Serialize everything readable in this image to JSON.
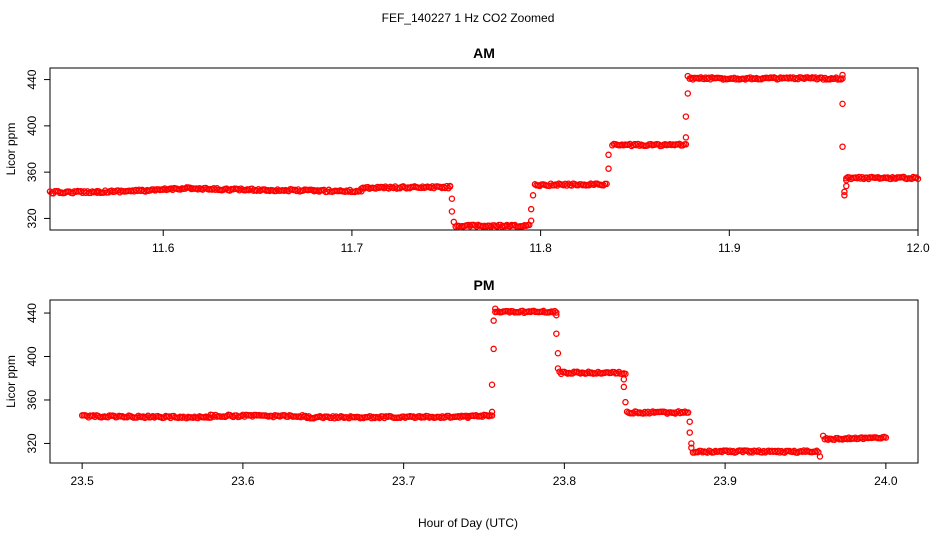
{
  "figure": {
    "title": "FEF_140227  1 Hz CO2 Zoomed",
    "xlabel": "Hour of Day (UTC)"
  },
  "colors": {
    "points": "#ff0000",
    "axes": "#000000",
    "background": "#ffffff"
  },
  "chart_data": [
    {
      "type": "scatter",
      "title": "AM",
      "ylabel": "Licor ppm",
      "xlim": [
        11.54,
        12.0
      ],
      "ylim": [
        310,
        450
      ],
      "xticks": [
        "11.6",
        "11.7",
        "11.8",
        "11.9",
        "12.0"
      ],
      "yticks": [
        "320",
        "360",
        "400",
        "440"
      ],
      "grid": false,
      "segments": [
        {
          "x": [
            11.54,
            11.565
          ],
          "y": [
            342.5,
            343
          ]
        },
        {
          "x": [
            11.565,
            11.6
          ],
          "y": [
            343,
            344.5
          ]
        },
        {
          "x": [
            11.6,
            11.615
          ],
          "y": [
            345,
            346.5
          ]
        },
        {
          "x": [
            11.615,
            11.68
          ],
          "y": [
            345.5,
            344
          ]
        },
        {
          "x": [
            11.68,
            11.705
          ],
          "y": [
            344,
            343.5
          ]
        },
        {
          "x": [
            11.705,
            11.752
          ],
          "y": [
            346.5,
            347
          ]
        },
        {
          "x": [
            11.755,
            11.794
          ],
          "y": [
            313.5,
            313.5
          ]
        },
        {
          "x": [
            11.797,
            11.835
          ],
          "y": [
            349,
            349.5
          ]
        },
        {
          "x": [
            11.838,
            11.877
          ],
          "y": [
            383.5,
            383.5
          ]
        },
        {
          "x": [
            11.879,
            11.96
          ],
          "y": [
            441,
            441
          ]
        },
        {
          "x": [
            11.962,
            12.0
          ],
          "y": [
            355,
            355
          ]
        }
      ],
      "transition_points": [
        {
          "x": 11.752,
          "y": 348
        },
        {
          "x": 11.753,
          "y": 337
        },
        {
          "x": 11.753,
          "y": 326
        },
        {
          "x": 11.754,
          "y": 317
        },
        {
          "x": 11.795,
          "y": 318
        },
        {
          "x": 11.795,
          "y": 328
        },
        {
          "x": 11.796,
          "y": 340
        },
        {
          "x": 11.836,
          "y": 363
        },
        {
          "x": 11.836,
          "y": 375
        },
        {
          "x": 11.877,
          "y": 390
        },
        {
          "x": 11.877,
          "y": 408
        },
        {
          "x": 11.878,
          "y": 428
        },
        {
          "x": 11.878,
          "y": 443
        },
        {
          "x": 11.96,
          "y": 444
        },
        {
          "x": 11.96,
          "y": 419
        },
        {
          "x": 11.96,
          "y": 382
        },
        {
          "x": 11.961,
          "y": 340
        },
        {
          "x": 11.961,
          "y": 343
        },
        {
          "x": 11.962,
          "y": 348
        },
        {
          "x": 11.962,
          "y": 353
        }
      ]
    },
    {
      "type": "scatter",
      "title": "PM",
      "ylabel": "Licor ppm",
      "xlim": [
        23.48,
        24.02
      ],
      "ylim": [
        302,
        452
      ],
      "xticks": [
        "23.5",
        "23.6",
        "23.7",
        "23.8",
        "23.9",
        "24.0"
      ],
      "yticks": [
        "320",
        "360",
        "400",
        "440"
      ],
      "grid": false,
      "segments": [
        {
          "x": [
            23.5,
            23.58
          ],
          "y": [
            345,
            344
          ]
        },
        {
          "x": [
            23.58,
            23.64
          ],
          "y": [
            345.5,
            345
          ]
        },
        {
          "x": [
            23.64,
            23.74
          ],
          "y": [
            344,
            344.5
          ]
        },
        {
          "x": [
            23.74,
            23.755
          ],
          "y": [
            345.5,
            345.5
          ]
        },
        {
          "x": [
            23.757,
            23.795
          ],
          "y": [
            441,
            441
          ]
        },
        {
          "x": [
            23.797,
            23.838
          ],
          "y": [
            385,
            385
          ]
        },
        {
          "x": [
            23.839,
            23.877
          ],
          "y": [
            348.5,
            348.5
          ]
        },
        {
          "x": [
            23.88,
            23.958
          ],
          "y": [
            312.5,
            312.5
          ]
        },
        {
          "x": [
            23.962,
            24.0
          ],
          "y": [
            324,
            325.5
          ]
        }
      ],
      "transition_points": [
        {
          "x": 23.755,
          "y": 349
        },
        {
          "x": 23.755,
          "y": 374
        },
        {
          "x": 23.756,
          "y": 407
        },
        {
          "x": 23.756,
          "y": 433
        },
        {
          "x": 23.757,
          "y": 444
        },
        {
          "x": 23.795,
          "y": 438
        },
        {
          "x": 23.795,
          "y": 421
        },
        {
          "x": 23.796,
          "y": 403
        },
        {
          "x": 23.796,
          "y": 389
        },
        {
          "x": 23.837,
          "y": 379
        },
        {
          "x": 23.837,
          "y": 372
        },
        {
          "x": 23.838,
          "y": 358
        },
        {
          "x": 23.878,
          "y": 340
        },
        {
          "x": 23.878,
          "y": 330
        },
        {
          "x": 23.879,
          "y": 320
        },
        {
          "x": 23.879,
          "y": 316
        },
        {
          "x": 23.959,
          "y": 308
        },
        {
          "x": 23.961,
          "y": 327
        }
      ]
    }
  ]
}
